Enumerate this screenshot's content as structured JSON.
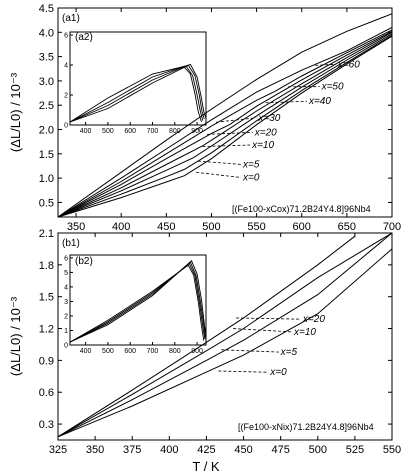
{
  "chart_data": [
    {
      "type": "line",
      "panel_label": "(a1)",
      "xlim": [
        330,
        700
      ],
      "ylim": [
        0.2,
        4.5
      ],
      "x_ticks": [
        350,
        400,
        450,
        500,
        550,
        600,
        650,
        700
      ],
      "y_ticks": [
        0.5,
        1.0,
        1.5,
        2.0,
        2.5,
        3.0,
        3.5,
        4.0,
        4.5
      ],
      "y_tick_labels": [
        "0.5",
        "1.0",
        "1.5",
        "2.0",
        "2.5",
        "3.0",
        "3.5",
        "4.0",
        "4.5"
      ],
      "ylabel": "(ΔL/L0) / 10⁻³",
      "alloy_label": "[(Fe100-xCox)71.2B24Y4.8]96Nb4",
      "series": [
        {
          "name": "x=0",
          "label_at": [
            535,
            0.95
          ],
          "leader_from": [
            483,
            1.12
          ],
          "x": [
            330,
            400,
            450,
            470,
            500,
            550,
            600,
            650,
            700
          ],
          "y": [
            0.2,
            0.6,
            0.92,
            1.05,
            1.4,
            2.1,
            2.75,
            3.35,
            3.92
          ]
        },
        {
          "name": "x=5",
          "label_at": [
            535,
            1.22
          ],
          "leader_from": [
            485,
            1.35
          ],
          "x": [
            330,
            400,
            450,
            470,
            500,
            550,
            600,
            650,
            700
          ],
          "y": [
            0.2,
            0.67,
            1.03,
            1.18,
            1.52,
            2.18,
            2.8,
            3.38,
            3.94
          ]
        },
        {
          "name": "x=10",
          "label_at": [
            545,
            1.62
          ],
          "leader_from": [
            490,
            1.65
          ],
          "x": [
            330,
            400,
            450,
            480,
            500,
            550,
            600,
            650,
            700
          ],
          "y": [
            0.2,
            0.74,
            1.16,
            1.42,
            1.66,
            2.28,
            2.87,
            3.43,
            3.97
          ]
        },
        {
          "name": "x=20",
          "label_at": [
            548,
            1.88
          ],
          "leader_from": [
            495,
            1.9
          ],
          "x": [
            330,
            400,
            450,
            490,
            500,
            550,
            600,
            650,
            700
          ],
          "y": [
            0.2,
            0.8,
            1.28,
            1.66,
            1.78,
            2.38,
            2.94,
            3.48,
            4.0
          ]
        },
        {
          "name": "x=30",
          "label_at": [
            552,
            2.18
          ],
          "leader_from": [
            505,
            2.15
          ],
          "x": [
            330,
            400,
            450,
            500,
            520,
            550,
            600,
            650,
            700
          ],
          "y": [
            0.2,
            0.87,
            1.4,
            1.92,
            2.1,
            2.48,
            3.02,
            3.53,
            4.02
          ]
        },
        {
          "name": "x=40",
          "label_at": [
            608,
            2.52
          ],
          "leader_from": [
            560,
            2.55
          ],
          "x": [
            330,
            400,
            450,
            500,
            550,
            570,
            600,
            650,
            700
          ],
          "y": [
            0.2,
            0.93,
            1.5,
            2.07,
            2.6,
            2.78,
            3.1,
            3.58,
            4.05
          ]
        },
        {
          "name": "x=50",
          "label_at": [
            622,
            2.82
          ],
          "leader_from": [
            585,
            2.88
          ],
          "x": [
            330,
            400,
            450,
            500,
            550,
            600,
            620,
            650,
            700
          ],
          "y": [
            0.2,
            1.0,
            1.6,
            2.2,
            2.77,
            3.22,
            3.38,
            3.62,
            4.1
          ]
        },
        {
          "name": "x=60",
          "label_at": [
            640,
            3.28
          ],
          "leader_from": [
            615,
            3.32
          ],
          "x": [
            330,
            400,
            450,
            500,
            550,
            600,
            650,
            700
          ],
          "y": [
            0.2,
            1.12,
            1.78,
            2.42,
            3.03,
            3.59,
            4.02,
            4.38
          ]
        }
      ],
      "inset": {
        "panel_label": "(a2)",
        "xlim": [
          330,
          940
        ],
        "ylim": [
          0,
          6.2
        ],
        "x_ticks": [
          400,
          500,
          600,
          700,
          800,
          900
        ],
        "y_ticks": [
          0,
          2,
          4,
          6
        ],
        "series": [
          {
            "x": [
              330,
              500,
              700,
              840,
              870,
              890,
              905,
              920
            ],
            "y": [
              0.2,
              1.8,
              3.4,
              3.9,
              3.4,
              2.1,
              0.9,
              0.2
            ]
          },
          {
            "x": [
              330,
              500,
              700,
              850,
              880,
              900,
              915,
              925
            ],
            "y": [
              0.2,
              1.5,
              3.2,
              3.95,
              3.3,
              2.0,
              0.9,
              0.3
            ]
          },
          {
            "x": [
              330,
              500,
              700,
              860,
              890,
              910,
              922,
              932
            ],
            "y": [
              0.2,
              1.3,
              3.0,
              4.0,
              3.3,
              2.0,
              0.9,
              0.4
            ]
          },
          {
            "x": [
              330,
              500,
              700,
              870,
              900,
              918,
              930,
              938
            ],
            "y": [
              0.2,
              1.1,
              2.8,
              4.05,
              3.2,
              1.9,
              0.9,
              0.5
            ]
          }
        ]
      }
    },
    {
      "type": "line",
      "panel_label": "(b1)",
      "xlim": [
        325,
        550
      ],
      "ylim": [
        0.15,
        2.1
      ],
      "x_ticks": [
        325,
        350,
        375,
        400,
        425,
        450,
        475,
        500,
        525,
        550
      ],
      "y_ticks": [
        0.3,
        0.6,
        0.9,
        1.2,
        1.5,
        1.8,
        2.1
      ],
      "y_tick_labels": [
        "0.3",
        "0.6",
        "0.9",
        "1.2",
        "1.5",
        "1.8",
        "2.1"
      ],
      "xlabel": "T / K",
      "ylabel": "(ΔL/L0) / 10⁻³",
      "alloy_label": "[(Fe100-xNix)71.2B24Y4.8]96Nb4",
      "series": [
        {
          "name": "x=0",
          "label_at": [
            468,
            0.76
          ],
          "leader_from": [
            433,
            0.8
          ],
          "x": [
            325,
            375,
            425,
            450,
            500,
            550
          ],
          "y": [
            0.18,
            0.47,
            0.79,
            0.95,
            1.34,
            1.95
          ]
        },
        {
          "name": "x=5",
          "label_at": [
            475,
            0.95
          ],
          "leader_from": [
            435,
            1.0
          ],
          "x": [
            325,
            375,
            425,
            450,
            500,
            550
          ],
          "y": [
            0.18,
            0.53,
            0.9,
            1.09,
            1.52,
            2.1
          ]
        },
        {
          "name": "x=10",
          "label_at": [
            484,
            1.14
          ],
          "leader_from": [
            443,
            1.2
          ],
          "x": [
            325,
            375,
            425,
            450,
            500,
            550
          ],
          "y": [
            0.18,
            0.58,
            0.99,
            1.2,
            1.68,
            2.1
          ]
        },
        {
          "name": "x=20",
          "label_at": [
            490,
            1.26
          ],
          "leader_from": [
            445,
            1.3
          ],
          "x": [
            325,
            375,
            425,
            450,
            500,
            525
          ],
          "y": [
            0.18,
            0.62,
            1.07,
            1.3,
            1.8,
            2.07
          ]
        }
      ],
      "inset": {
        "panel_label": "(b2)",
        "xlim": [
          330,
          940
        ],
        "ylim": [
          0,
          6.2
        ],
        "x_ticks": [
          400,
          500,
          600,
          700,
          800,
          900
        ],
        "y_ticks": [
          0,
          1,
          2,
          3,
          4,
          5,
          6
        ],
        "series": [
          {
            "x": [
              330,
              500,
              700,
              860,
              885,
              905,
              920,
              930
            ],
            "y": [
              0.2,
              1.7,
              3.7,
              5.5,
              4.8,
              3.0,
              1.3,
              0.3
            ]
          },
          {
            "x": [
              330,
              500,
              700,
              865,
              890,
              910,
              925,
              935
            ],
            "y": [
              0.2,
              1.6,
              3.6,
              5.6,
              4.8,
              3.0,
              1.3,
              0.4
            ]
          },
          {
            "x": [
              330,
              500,
              700,
              870,
              895,
              915,
              930,
              938
            ],
            "y": [
              0.2,
              1.5,
              3.5,
              5.7,
              4.8,
              3.0,
              1.3,
              0.5
            ]
          },
          {
            "x": [
              330,
              500,
              700,
              875,
              900,
              920,
              933,
              940
            ],
            "y": [
              0.2,
              1.4,
              3.4,
              5.8,
              4.9,
              3.1,
              1.4,
              0.6
            ]
          }
        ]
      }
    }
  ]
}
